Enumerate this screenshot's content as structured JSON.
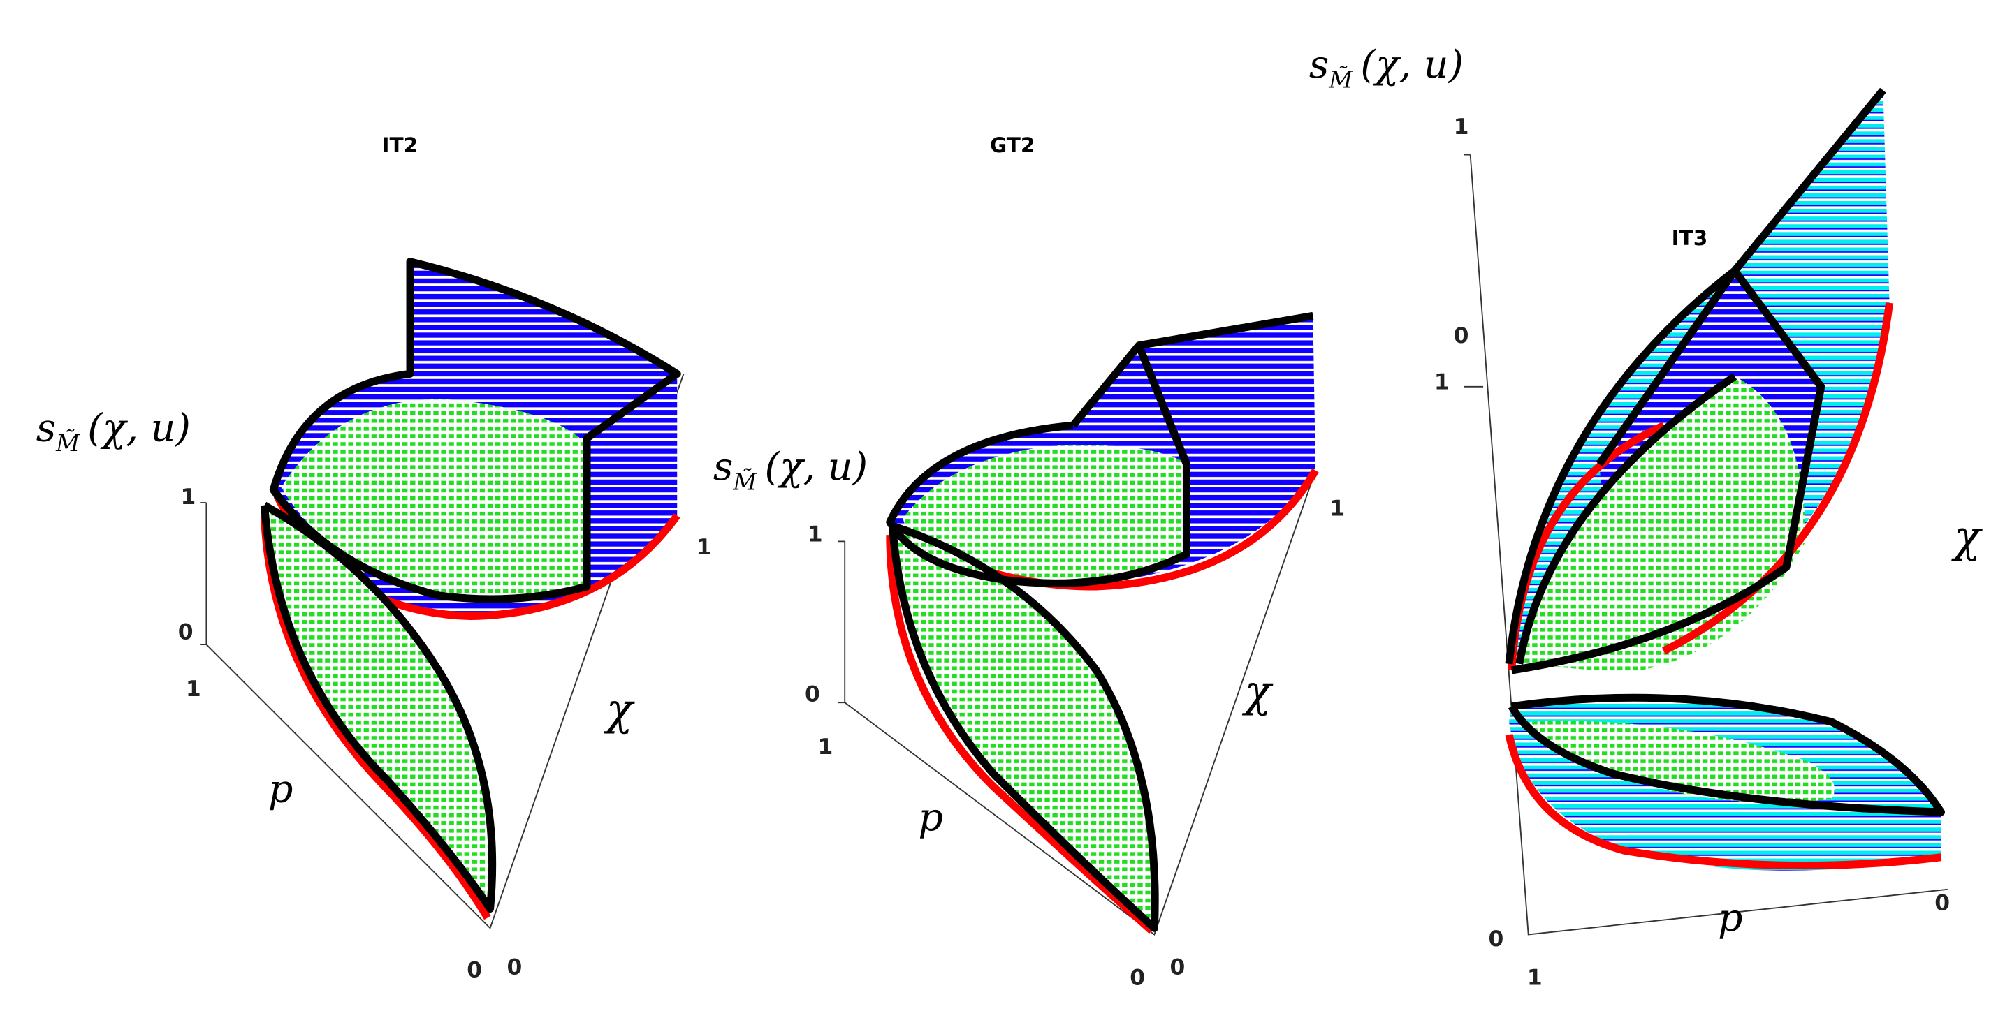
{
  "panels": [
    {
      "title": "IT2",
      "z_label": {
        "base": "s",
        "sub": "M̃",
        "args": "(χ, u)"
      },
      "z_ticks": [
        1,
        0
      ],
      "p_ticks": [
        1,
        0
      ],
      "chi_ticks": [
        0,
        1
      ],
      "p_label": "p",
      "chi_label": "χ"
    },
    {
      "title": "GT2",
      "z_label": {
        "base": "s",
        "sub": "M̃",
        "args": "(χ, u)"
      },
      "z_ticks": [
        1,
        0
      ],
      "p_ticks": [
        1,
        0
      ],
      "chi_ticks": [
        0,
        1
      ],
      "p_label": "p",
      "chi_label": "χ"
    },
    {
      "title": "IT3",
      "z_label": {
        "base": "s",
        "sub": "M̃",
        "args": "(χ, u)"
      },
      "z_ticks": [
        1,
        0
      ],
      "p_ticks": [
        0,
        1
      ],
      "chi_ticks": [
        1,
        0
      ],
      "p_label": "p",
      "chi_label": "χ"
    }
  ]
}
